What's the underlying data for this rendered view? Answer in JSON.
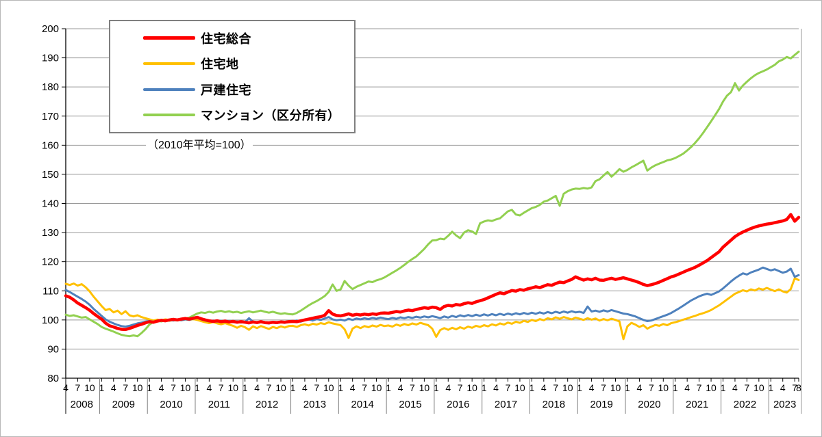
{
  "note_label": "（2010年平均=100）",
  "chart_data": {
    "type": "line",
    "title": "",
    "note": "（2010年平均=100）",
    "frequency": "monthly",
    "start_month": "2008-04",
    "end_month": "2023-08",
    "n_points": 185,
    "ylim": [
      80,
      200
    ],
    "ytick_step": 10,
    "grid": "horizontal",
    "legend_position": "top-left-inside-box",
    "colors": {
      "gridline": "#999999",
      "axis": "#000000"
    },
    "x_axis": {
      "tick_months_label_note": "month-of-year tick labels per year",
      "years": [
        {
          "label": "2008",
          "months": [
            4,
            7,
            10
          ]
        },
        {
          "label": "2009",
          "months": [
            1,
            4,
            7,
            10
          ]
        },
        {
          "label": "2010",
          "months": [
            1,
            4,
            7,
            10
          ]
        },
        {
          "label": "2011",
          "months": [
            1,
            4,
            7,
            10
          ]
        },
        {
          "label": "2012",
          "months": [
            1,
            4,
            7,
            10
          ]
        },
        {
          "label": "2013",
          "months": [
            1,
            4,
            7,
            10
          ]
        },
        {
          "label": "2014",
          "months": [
            1,
            4,
            7,
            10
          ]
        },
        {
          "label": "2015",
          "months": [
            1,
            4,
            7,
            10
          ]
        },
        {
          "label": "2016",
          "months": [
            1,
            4,
            7,
            10
          ]
        },
        {
          "label": "2017",
          "months": [
            1,
            4,
            7,
            10
          ]
        },
        {
          "label": "2018",
          "months": [
            1,
            4,
            7,
            10
          ]
        },
        {
          "label": "2019",
          "months": [
            1,
            4,
            7,
            10
          ]
        },
        {
          "label": "2020",
          "months": [
            1,
            4,
            7,
            10
          ]
        },
        {
          "label": "2021",
          "months": [
            1,
            4,
            7,
            10
          ]
        },
        {
          "label": "2022",
          "months": [
            1,
            4,
            7,
            10
          ]
        },
        {
          "label": "2023",
          "months": [
            1,
            4,
            7,
            8
          ]
        }
      ]
    },
    "series": [
      {
        "key": "housing-total",
        "name": "住宅総合",
        "color": "#FF0000",
        "values": [
          108.3,
          107.8,
          106.9,
          105.8,
          105.0,
          104.2,
          103.3,
          102.2,
          101.2,
          100.3,
          98.9,
          98.0,
          97.6,
          97.1,
          96.8,
          96.7,
          97.1,
          97.6,
          98.1,
          98.5,
          99.0,
          99.4,
          99.2,
          99.6,
          99.9,
          99.7,
          100.0,
          100.2,
          100.0,
          100.3,
          100.5,
          100.3,
          100.6,
          100.9,
          100.4,
          100.0,
          99.7,
          99.5,
          99.7,
          99.4,
          99.6,
          99.3,
          99.5,
          99.2,
          99.4,
          99.2,
          99.0,
          99.3,
          99.1,
          99.4,
          99.1,
          99.0,
          99.2,
          99.1,
          99.3,
          99.2,
          99.4,
          99.5,
          99.4,
          99.7,
          100.0,
          100.3,
          100.6,
          100.9,
          101.1,
          101.6,
          103.2,
          102.0,
          101.5,
          101.4,
          101.7,
          102.1,
          101.6,
          101.9,
          101.7,
          102.0,
          101.8,
          102.1,
          101.9,
          102.3,
          102.4,
          102.3,
          102.6,
          102.9,
          102.7,
          103.1,
          103.4,
          103.2,
          103.6,
          103.9,
          104.2,
          104.0,
          104.4,
          104.2,
          103.6,
          104.6,
          105.0,
          104.8,
          105.3,
          105.1,
          105.6,
          105.9,
          105.7,
          106.2,
          106.6,
          107.0,
          107.6,
          108.2,
          108.8,
          109.3,
          109.0,
          109.6,
          110.1,
          109.9,
          110.4,
          110.2,
          110.7,
          111.0,
          111.4,
          111.1,
          111.6,
          112.1,
          111.9,
          112.5,
          113.0,
          112.8,
          113.4,
          113.9,
          114.8,
          114.2,
          113.7,
          114.1,
          113.8,
          114.3,
          113.7,
          113.6,
          114.0,
          114.3,
          113.9,
          114.2,
          114.5,
          114.1,
          113.7,
          113.3,
          112.8,
          112.2,
          111.8,
          112.1,
          112.5,
          113.0,
          113.6,
          114.2,
          114.8,
          115.2,
          115.8,
          116.4,
          117.0,
          117.5,
          118.1,
          118.8,
          119.6,
          120.4,
          121.4,
          122.4,
          123.4,
          125.0,
          126.2,
          127.4,
          128.6,
          129.5,
          130.2,
          130.8,
          131.4,
          131.9,
          132.3,
          132.6,
          132.9,
          133.1,
          133.4,
          133.7,
          134.0,
          134.5,
          136.2,
          133.9,
          135.2
        ]
      },
      {
        "key": "residential-land",
        "name": "住宅地",
        "color": "#FFC000",
        "values": [
          112.4,
          112.0,
          112.5,
          111.8,
          112.3,
          111.2,
          109.8,
          108.0,
          106.4,
          104.8,
          103.4,
          103.8,
          102.6,
          103.2,
          102.0,
          103.0,
          101.6,
          101.2,
          101.6,
          101.0,
          100.6,
          100.2,
          99.8,
          100.1,
          99.9,
          100.2,
          100.0,
          99.8,
          100.1,
          99.9,
          100.2,
          100.0,
          100.3,
          100.0,
          99.6,
          99.2,
          98.9,
          99.3,
          98.8,
          98.5,
          98.9,
          98.4,
          98.0,
          97.3,
          98.0,
          97.5,
          96.6,
          97.8,
          97.2,
          97.9,
          97.4,
          96.9,
          97.6,
          97.2,
          97.8,
          97.4,
          97.9,
          98.0,
          97.6,
          98.2,
          98.5,
          98.1,
          98.7,
          98.4,
          98.9,
          98.6,
          99.2,
          98.8,
          98.5,
          98.2,
          96.8,
          93.8,
          97.0,
          97.8,
          97.2,
          97.9,
          97.5,
          98.1,
          97.7,
          98.3,
          97.9,
          98.1,
          97.7,
          98.4,
          98.0,
          98.6,
          98.2,
          98.8,
          98.4,
          99.0,
          98.6,
          98.2,
          97.0,
          94.2,
          96.5,
          97.2,
          96.6,
          97.3,
          96.8,
          97.5,
          97.0,
          97.7,
          97.3,
          98.0,
          97.6,
          98.2,
          97.8,
          98.5,
          98.1,
          98.8,
          98.4,
          99.1,
          98.7,
          99.4,
          99.0,
          99.7,
          99.3,
          100.0,
          99.6,
          100.3,
          99.9,
          100.6,
          100.2,
          100.9,
          100.4,
          101.0,
          100.6,
          100.2,
          100.8,
          100.4,
          100.0,
          100.6,
          100.1,
          100.5,
          99.8,
          100.3,
          99.9,
          100.4,
          100.0,
          99.5,
          93.4,
          97.8,
          99.0,
          98.4,
          97.6,
          98.2,
          97.0,
          97.7,
          98.3,
          98.0,
          98.6,
          98.2,
          98.9,
          99.2,
          99.6,
          100.1,
          100.5,
          101.0,
          101.4,
          101.9,
          102.3,
          102.8,
          103.4,
          104.2,
          105.0,
          106.0,
          107.0,
          108.0,
          109.0,
          109.6,
          110.2,
          109.8,
          110.5,
          110.1,
          110.8,
          110.4,
          111.0,
          110.4,
          109.9,
          110.5,
          109.8,
          109.4,
          110.6,
          114.3,
          113.7
        ]
      },
      {
        "key": "detached-house",
        "name": "戸建住宅",
        "color": "#4E81BD",
        "values": [
          110.3,
          109.6,
          108.8,
          108.0,
          107.2,
          106.3,
          105.2,
          103.8,
          102.6,
          101.4,
          100.2,
          99.4,
          98.8,
          98.3,
          97.9,
          97.7,
          98.0,
          98.4,
          98.8,
          99.1,
          99.4,
          99.6,
          99.4,
          99.7,
          99.9,
          99.7,
          100.0,
          99.8,
          100.1,
          99.9,
          100.2,
          100.0,
          100.4,
          100.7,
          100.2,
          99.8,
          99.5,
          99.8,
          99.4,
          99.7,
          99.3,
          99.6,
          99.2,
          99.5,
          99.1,
          99.3,
          100.6,
          99.4,
          99.0,
          99.5,
          99.1,
          98.8,
          99.2,
          98.9,
          99.3,
          99.0,
          99.4,
          99.5,
          99.8,
          99.4,
          99.9,
          100.2,
          99.8,
          100.3,
          100.0,
          100.5,
          101.0,
          100.2,
          99.9,
          100.1,
          99.8,
          100.4,
          100.0,
          100.5,
          100.2,
          100.6,
          100.3,
          100.7,
          100.4,
          100.8,
          100.5,
          100.3,
          100.7,
          100.4,
          100.9,
          100.6,
          101.0,
          100.7,
          101.1,
          100.8,
          101.2,
          100.9,
          101.3,
          101.0,
          100.6,
          101.2,
          100.8,
          101.4,
          101.0,
          101.6,
          101.2,
          101.7,
          101.3,
          101.8,
          101.4,
          101.9,
          101.5,
          102.0,
          101.6,
          102.1,
          101.7,
          102.2,
          101.8,
          102.3,
          101.9,
          102.4,
          102.0,
          102.5,
          102.1,
          102.6,
          102.2,
          102.7,
          102.3,
          102.8,
          102.4,
          102.9,
          102.5,
          103.0,
          102.6,
          102.8,
          102.4,
          104.6,
          102.9,
          103.2,
          102.8,
          103.3,
          102.9,
          103.4,
          103.0,
          102.6,
          102.2,
          102.0,
          101.6,
          101.2,
          100.6,
          100.0,
          99.6,
          99.8,
          100.3,
          100.8,
          101.3,
          101.8,
          102.4,
          103.2,
          104.0,
          104.9,
          105.8,
          106.7,
          107.4,
          108.1,
          108.6,
          109.0,
          108.6,
          109.2,
          109.8,
          110.8,
          112.0,
          113.2,
          114.3,
          115.2,
          116.0,
          115.6,
          116.3,
          116.8,
          117.3,
          118.0,
          117.5,
          117.0,
          117.4,
          116.8,
          116.2,
          116.6,
          117.6,
          114.8,
          115.4
        ]
      },
      {
        "key": "condominium",
        "name": "マンション（区分所有）",
        "color": "#92D050",
        "values": [
          101.8,
          101.4,
          101.6,
          101.2,
          100.8,
          101.0,
          100.2,
          99.4,
          98.6,
          97.6,
          97.0,
          96.5,
          96.0,
          95.4,
          94.9,
          94.6,
          94.4,
          94.7,
          94.4,
          95.5,
          96.8,
          98.4,
          99.3,
          99.7,
          99.5,
          99.9,
          99.7,
          100.0,
          99.8,
          100.1,
          100.4,
          100.8,
          101.5,
          102.2,
          102.6,
          102.4,
          102.8,
          102.5,
          102.9,
          103.1,
          102.7,
          103.0,
          102.6,
          102.8,
          102.4,
          102.7,
          103.0,
          102.6,
          102.9,
          103.2,
          102.8,
          102.5,
          102.8,
          102.4,
          102.1,
          102.3,
          102.0,
          101.9,
          102.4,
          103.2,
          104.1,
          105.0,
          105.8,
          106.5,
          107.3,
          108.2,
          109.6,
          112.2,
          110.0,
          110.5,
          113.4,
          111.8,
          110.6,
          111.4,
          112.0,
          112.6,
          113.2,
          113.0,
          113.6,
          114.0,
          114.6,
          115.4,
          116.2,
          117.0,
          117.9,
          118.9,
          120.0,
          120.9,
          121.8,
          123.1,
          124.4,
          126.0,
          127.3,
          127.4,
          127.9,
          127.7,
          128.9,
          130.3,
          129.0,
          128.1,
          130.0,
          130.8,
          130.4,
          129.5,
          133.2,
          133.8,
          134.2,
          134.0,
          134.5,
          134.9,
          136.1,
          137.3,
          137.8,
          136.2,
          135.9,
          136.8,
          137.6,
          138.4,
          138.8,
          139.5,
          140.6,
          141.0,
          141.8,
          142.6,
          139.2,
          143.3,
          144.2,
          144.8,
          145.1,
          145.0,
          145.3,
          145.1,
          145.5,
          147.7,
          148.3,
          149.6,
          150.8,
          149.2,
          150.4,
          151.8,
          150.9,
          151.5,
          152.4,
          153.1,
          153.9,
          154.7,
          151.3,
          152.3,
          153.1,
          153.7,
          154.2,
          154.8,
          155.1,
          155.6,
          156.3,
          157.1,
          158.2,
          159.4,
          160.8,
          162.4,
          164.2,
          166.2,
          168.2,
          170.3,
          172.4,
          175.0,
          177.0,
          178.2,
          181.3,
          178.8,
          180.5,
          181.8,
          183.0,
          184.0,
          184.8,
          185.4,
          186.0,
          186.8,
          187.6,
          188.8,
          189.4,
          190.3,
          189.8,
          191.0,
          192.1
        ]
      }
    ]
  }
}
